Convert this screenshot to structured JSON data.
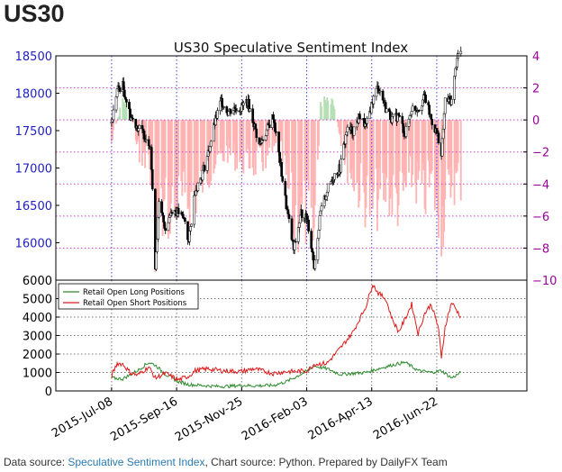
{
  "heading": "US30",
  "footer": {
    "prefix": "Data source: ",
    "link1": "Speculative Sentiment Index",
    "middle": ", Chart source: Python. Prepared by DailyFX Team"
  },
  "colors": {
    "price_up": "#ffffff",
    "price_down": "#000000",
    "ssi_positive": "#b6dfb6",
    "ssi_negative": "#ffb3b3",
    "long_line": "#2e8b2e",
    "short_line": "#e01818",
    "left_axis": "#2020c0",
    "right_axis": "#990099",
    "grid_v": "#4040ff",
    "grid_h": "#cc44cc"
  },
  "chart_data": [
    {
      "type": "candlestick",
      "title": "US30 Speculative Sentiment Index",
      "y_left": {
        "ticks": [
          16000,
          16500,
          17000,
          17500,
          18000,
          18500
        ],
        "range": [
          15500,
          18500
        ]
      },
      "y_right": {
        "ticks": [
          4,
          2,
          0,
          -2,
          -4,
          -6,
          -8,
          -10
        ],
        "range": [
          -10,
          4
        ]
      },
      "x_ticks": [
        "2015-Jul-08",
        "2015-Sep-16",
        "2015-Nov-25",
        "2016-Feb-03",
        "2016-Apr-13",
        "2016-Jun-22"
      ],
      "price_points": [
        [
          "2015-07-08",
          17600
        ],
        [
          "2015-07-14",
          18050
        ],
        [
          "2015-07-20",
          18100
        ],
        [
          "2015-07-28",
          17700
        ],
        [
          "2015-08-05",
          17550
        ],
        [
          "2015-08-12",
          17450
        ],
        [
          "2015-08-19",
          17300
        ],
        [
          "2015-08-24",
          15700
        ],
        [
          "2015-08-28",
          16500
        ],
        [
          "2015-09-04",
          16200
        ],
        [
          "2015-09-11",
          16450
        ],
        [
          "2015-09-18",
          16400
        ],
        [
          "2015-09-25",
          16300
        ],
        [
          "2015-09-29",
          16000
        ],
        [
          "2015-10-06",
          16700
        ],
        [
          "2015-10-13",
          16900
        ],
        [
          "2015-10-20",
          17200
        ],
        [
          "2015-10-27",
          17600
        ],
        [
          "2015-11-03",
          17900
        ],
        [
          "2015-11-10",
          17750
        ],
        [
          "2015-11-17",
          17800
        ],
        [
          "2015-11-24",
          17800
        ],
        [
          "2015-12-01",
          17900
        ],
        [
          "2015-12-08",
          17600
        ],
        [
          "2015-12-14",
          17300
        ],
        [
          "2015-12-22",
          17500
        ],
        [
          "2015-12-29",
          17700
        ],
        [
          "2016-01-05",
          17100
        ],
        [
          "2016-01-12",
          16500
        ],
        [
          "2016-01-20",
          15900
        ],
        [
          "2016-01-28",
          16400
        ],
        [
          "2016-02-04",
          16300
        ],
        [
          "2016-02-11",
          15700
        ],
        [
          "2016-02-18",
          16400
        ],
        [
          "2016-02-25",
          16700
        ],
        [
          "2016-03-03",
          16900
        ],
        [
          "2016-03-10",
          17000
        ],
        [
          "2016-03-17",
          17500
        ],
        [
          "2016-03-24",
          17500
        ],
        [
          "2016-03-31",
          17700
        ],
        [
          "2016-04-07",
          17550
        ],
        [
          "2016-04-14",
          17900
        ],
        [
          "2016-04-20",
          18100
        ],
        [
          "2016-04-28",
          17800
        ],
        [
          "2016-05-05",
          17650
        ],
        [
          "2016-05-12",
          17700
        ],
        [
          "2016-05-19",
          17450
        ],
        [
          "2016-05-26",
          17800
        ],
        [
          "2016-06-02",
          17800
        ],
        [
          "2016-06-09",
          17950
        ],
        [
          "2016-06-16",
          17650
        ],
        [
          "2016-06-24",
          17400
        ],
        [
          "2016-06-27",
          17150
        ],
        [
          "2016-07-01",
          17900
        ],
        [
          "2016-07-08",
          17900
        ],
        [
          "2016-07-14",
          18500
        ],
        [
          "2016-07-18",
          18550
        ]
      ],
      "ssi_points": [
        [
          "2015-07-08",
          -1.8
        ],
        [
          "2015-07-20",
          1.6
        ],
        [
          "2015-07-28",
          0.9
        ],
        [
          "2015-08-05",
          -2.4
        ],
        [
          "2015-08-17",
          -3.0
        ],
        [
          "2015-08-24",
          -8.7
        ],
        [
          "2015-09-04",
          -7.2
        ],
        [
          "2015-09-18",
          -6.5
        ],
        [
          "2015-10-06",
          -6.0
        ],
        [
          "2015-10-20",
          -4.0
        ],
        [
          "2015-11-10",
          -2.5
        ],
        [
          "2015-11-24",
          -3.2
        ],
        [
          "2015-12-14",
          -3.5
        ],
        [
          "2016-01-05",
          -2.0
        ],
        [
          "2016-01-20",
          -8.0
        ],
        [
          "2016-02-04",
          -7.5
        ],
        [
          "2016-02-11",
          -9.2
        ],
        [
          "2016-02-18",
          1.5
        ],
        [
          "2016-03-03",
          1.2
        ],
        [
          "2016-03-17",
          -3.5
        ],
        [
          "2016-03-31",
          -5.5
        ],
        [
          "2016-04-14",
          -7.0
        ],
        [
          "2016-04-28",
          -5.5
        ],
        [
          "2016-05-12",
          -6.5
        ],
        [
          "2016-05-26",
          -4.5
        ],
        [
          "2016-06-09",
          -6.0
        ],
        [
          "2016-06-16",
          -5.0
        ],
        [
          "2016-06-27",
          -8.0
        ],
        [
          "2016-07-08",
          -5.0
        ],
        [
          "2016-07-18",
          -4.8
        ]
      ]
    },
    {
      "type": "line",
      "y": {
        "ticks": [
          0,
          1000,
          2000,
          3000,
          4000,
          5000,
          6000
        ],
        "range": [
          0,
          6000
        ]
      },
      "legend": "top-left",
      "series": [
        {
          "name": "Retail Open Long Positions",
          "points": [
            [
              "2015-07-08",
              700
            ],
            [
              "2015-07-20",
              650
            ],
            [
              "2015-08-05",
              1100
            ],
            [
              "2015-08-17",
              1550
            ],
            [
              "2015-08-24",
              1400
            ],
            [
              "2015-09-04",
              900
            ],
            [
              "2015-09-18",
              500
            ],
            [
              "2015-09-29",
              350
            ],
            [
              "2015-10-13",
              300
            ],
            [
              "2015-10-27",
              250
            ],
            [
              "2015-11-10",
              250
            ],
            [
              "2015-11-24",
              300
            ],
            [
              "2015-12-08",
              280
            ],
            [
              "2015-12-29",
              300
            ],
            [
              "2016-01-12",
              500
            ],
            [
              "2016-01-20",
              700
            ],
            [
              "2016-02-04",
              1100
            ],
            [
              "2016-02-11",
              1350
            ],
            [
              "2016-02-25",
              1200
            ],
            [
              "2016-03-10",
              900
            ],
            [
              "2016-03-24",
              950
            ],
            [
              "2016-04-07",
              1000
            ],
            [
              "2016-04-20",
              1200
            ],
            [
              "2016-05-05",
              1400
            ],
            [
              "2016-05-19",
              1550
            ],
            [
              "2016-06-02",
              1100
            ],
            [
              "2016-06-16",
              1000
            ],
            [
              "2016-06-27",
              1100
            ],
            [
              "2016-07-08",
              700
            ],
            [
              "2016-07-18",
              1000
            ]
          ]
        },
        {
          "name": "Retail Open Short Positions",
          "points": [
            [
              "2015-07-08",
              800
            ],
            [
              "2015-07-14",
              1500
            ],
            [
              "2015-07-20",
              1450
            ],
            [
              "2015-07-28",
              1000
            ],
            [
              "2015-08-05",
              850
            ],
            [
              "2015-08-17",
              1300
            ],
            [
              "2015-08-24",
              700
            ],
            [
              "2015-09-04",
              950
            ],
            [
              "2015-09-18",
              600
            ],
            [
              "2015-09-29",
              800
            ],
            [
              "2015-10-06",
              1100
            ],
            [
              "2015-10-20",
              1200
            ],
            [
              "2015-11-03",
              1100
            ],
            [
              "2015-11-24",
              1050
            ],
            [
              "2015-12-08",
              1200
            ],
            [
              "2015-12-29",
              950
            ],
            [
              "2016-01-12",
              1050
            ],
            [
              "2016-01-20",
              1050
            ],
            [
              "2016-02-04",
              1100
            ],
            [
              "2016-02-11",
              1450
            ],
            [
              "2016-02-25",
              1500
            ],
            [
              "2016-03-10",
              2300
            ],
            [
              "2016-03-24",
              3200
            ],
            [
              "2016-04-07",
              4600
            ],
            [
              "2016-04-14",
              5800
            ],
            [
              "2016-04-20",
              5300
            ],
            [
              "2016-04-28",
              5000
            ],
            [
              "2016-05-05",
              3900
            ],
            [
              "2016-05-12",
              3200
            ],
            [
              "2016-05-19",
              3900
            ],
            [
              "2016-05-26",
              4700
            ],
            [
              "2016-06-02",
              3100
            ],
            [
              "2016-06-09",
              4200
            ],
            [
              "2016-06-16",
              4700
            ],
            [
              "2016-06-24",
              3400
            ],
            [
              "2016-06-27",
              1700
            ],
            [
              "2016-07-01",
              3500
            ],
            [
              "2016-07-08",
              4800
            ],
            [
              "2016-07-18",
              4000
            ]
          ]
        }
      ]
    }
  ]
}
